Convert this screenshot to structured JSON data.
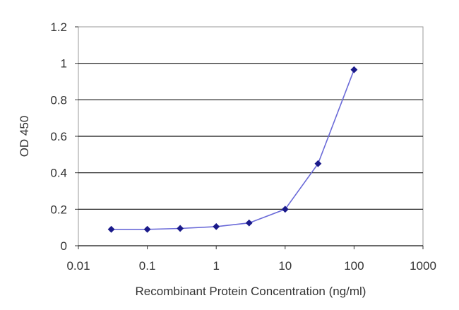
{
  "chart_data": {
    "type": "line",
    "title": "",
    "xlabel": "Recombinant Protein Concentration (ng/ml)",
    "ylabel": "OD 450",
    "xscale": "log",
    "xlim": [
      0.01,
      1000
    ],
    "ylim": [
      0,
      1.2
    ],
    "x_ticks": [
      0.01,
      0.1,
      1,
      10,
      100,
      1000
    ],
    "x_tick_labels": [
      "0.01",
      "0.1",
      "1",
      "10",
      "100",
      "1000"
    ],
    "y_ticks": [
      0,
      0.2,
      0.4,
      0.6,
      0.8,
      1,
      1.2
    ],
    "y_tick_labels": [
      "0",
      "0.2",
      "0.4",
      "0.6",
      "0.8",
      "1",
      "1.2"
    ],
    "grid": "horizontal",
    "legend": "none",
    "series": [
      {
        "x": [
          0.03,
          0.1,
          0.3,
          1,
          3,
          10,
          30,
          100
        ],
        "y": [
          0.09,
          0.09,
          0.095,
          0.105,
          0.125,
          0.2,
          0.45,
          0.965
        ],
        "color": "#6a6ad8",
        "marker_color": "#1a1a8a"
      }
    ],
    "colors": {
      "grid": "#111111",
      "frame": "#999999",
      "text": "#333333"
    }
  }
}
